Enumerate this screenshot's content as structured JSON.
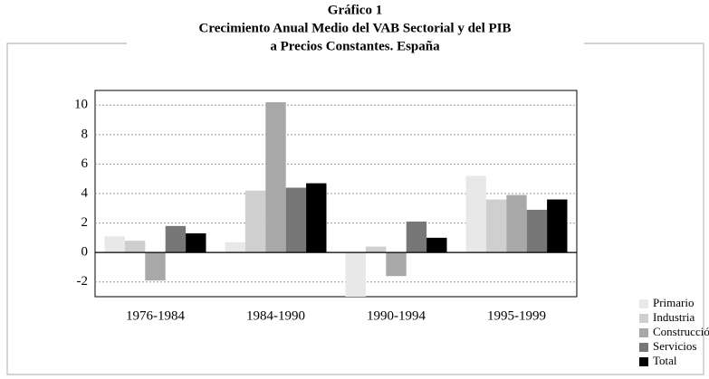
{
  "chart_data": {
    "type": "bar",
    "title": [
      "Gráfico 1",
      "Crecimiento Anual Medio del VAB Sectorial y del PIB",
      "a Precios Constantes. España"
    ],
    "categories": [
      "1976-1984",
      "1984-1990",
      "1990-1994",
      "1995-1999"
    ],
    "series": [
      {
        "name": "Primario",
        "color": "#e8e8e8",
        "values": [
          1.1,
          0.7,
          -3.0,
          5.2
        ]
      },
      {
        "name": "Industria",
        "color": "#cfcfcf",
        "values": [
          0.8,
          4.2,
          0.4,
          3.6
        ]
      },
      {
        "name": "Construcción",
        "color": "#a8a8a8",
        "values": [
          -1.9,
          10.2,
          -1.6,
          3.9
        ]
      },
      {
        "name": "Servicios",
        "color": "#777777",
        "values": [
          1.8,
          4.4,
          2.1,
          2.9
        ]
      },
      {
        "name": "Total",
        "color": "#000000",
        "values": [
          1.3,
          4.7,
          1.0,
          3.6
        ]
      }
    ],
    "ylim": [
      -3,
      11
    ],
    "yticks": [
      -2,
      0,
      2,
      4,
      6,
      8,
      10
    ],
    "grid": true,
    "legend": "bottom-right"
  }
}
